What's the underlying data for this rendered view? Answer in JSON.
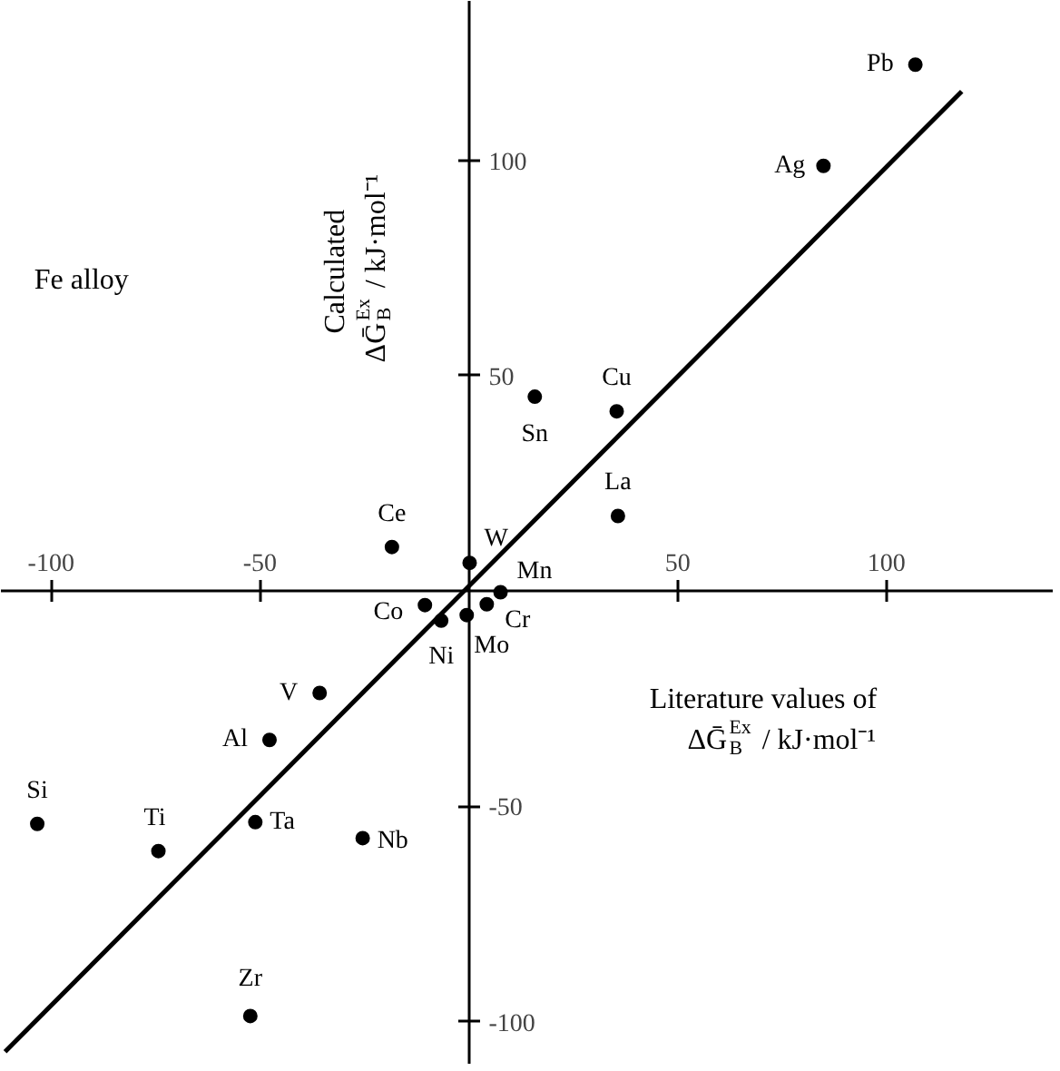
{
  "chart_data": {
    "type": "scatter",
    "xlabel": "Literature values of\nΔḠ$_{B}$$^{Ex}$ / kJ·mol⁻¹",
    "ylabel": "Calculated\nΔḠ$_{B}$$^{Ex}$ / kJ·mol⁻¹",
    "annotations": [
      "Fe alloy"
    ],
    "xlim": [
      -112,
      140
    ],
    "ylim": [
      -110,
      137
    ],
    "xticks": [
      -100,
      -50,
      50,
      100
    ],
    "yticks": [
      -100,
      -50,
      50,
      100
    ],
    "marker": "circle",
    "series": [
      {
        "name": "Pb",
        "color": "#000000",
        "x": [
          106.9
        ],
        "values": [
          122.2
        ]
      },
      {
        "name": "Ag",
        "color": "#000000",
        "x": [
          84.9
        ],
        "values": [
          98.7
        ]
      },
      {
        "name": "Sn",
        "color": "#000000",
        "x": [
          15.8
        ],
        "values": [
          45.1
        ]
      },
      {
        "name": "Cu",
        "color": "#000000",
        "x": [
          35.4
        ],
        "values": [
          41.7
        ]
      },
      {
        "name": "La",
        "color": "#000000",
        "x": [
          35.7
        ],
        "values": [
          17.4
        ]
      },
      {
        "name": "Ce",
        "color": "#000000",
        "x": [
          -18.4
        ],
        "values": [
          10.2
        ]
      },
      {
        "name": "W",
        "color": "#000000",
        "x": [
          0.2
        ],
        "values": [
          6.5
        ]
      },
      {
        "name": "Mn",
        "color": "#000000",
        "x": [
          7.6
        ],
        "values": [
          -0.3
        ]
      },
      {
        "name": "Cr",
        "color": "#000000",
        "x": [
          4.3
        ],
        "values": [
          -3.1
        ]
      },
      {
        "name": "Co",
        "color": "#000000",
        "x": [
          -10.5
        ],
        "values": [
          -3.3
        ]
      },
      {
        "name": "Ni",
        "color": "#000000",
        "x": [
          -6.6
        ],
        "values": [
          -6.9
        ]
      },
      {
        "name": "Mo",
        "color": "#000000",
        "x": [
          -0.5
        ],
        "values": [
          -5.6
        ]
      },
      {
        "name": "V",
        "color": "#000000",
        "x": [
          -35.7
        ],
        "values": [
          -23.7
        ]
      },
      {
        "name": "Al",
        "color": "#000000",
        "x": [
          -47.7
        ],
        "values": [
          -34.6
        ]
      },
      {
        "name": "Ta",
        "color": "#000000",
        "x": [
          -51.1
        ],
        "values": [
          -53.7
        ]
      },
      {
        "name": "Nb",
        "color": "#000000",
        "x": [
          -25.4
        ],
        "values": [
          -57.4
        ]
      },
      {
        "name": "Ti",
        "color": "#000000",
        "x": [
          -74.3
        ],
        "values": [
          -60.4
        ]
      },
      {
        "name": "Si",
        "color": "#000000",
        "x": [
          -103.3
        ],
        "values": [
          -54.1
        ]
      },
      {
        "name": "Zr",
        "color": "#000000",
        "x": [
          -52.3
        ],
        "values": [
          -98.7
        ]
      },
      {
        "type": "line",
        "color": "#000000",
        "marker": "none",
        "x": [
          -111,
          118
        ],
        "values": [
          -107,
          116
        ]
      }
    ]
  }
}
